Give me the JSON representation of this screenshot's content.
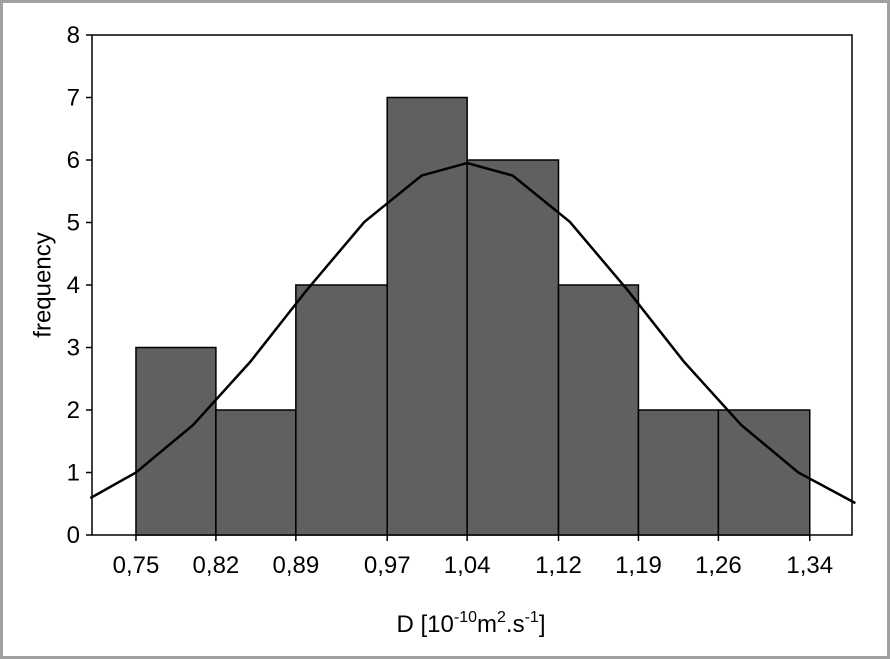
{
  "chart_data": {
    "type": "histogram",
    "xlabel": [
      "D [10",
      "-10",
      "m",
      "2",
      ".s",
      "-1",
      "]"
    ],
    "ylabel": "frequency",
    "bins": [
      0.75,
      0.82,
      0.89,
      0.97,
      1.04,
      1.12,
      1.19,
      1.26,
      1.34
    ],
    "values": [
      3,
      2,
      4,
      7,
      6,
      4,
      2,
      2
    ],
    "color": "#606060",
    "curve": {
      "color": "#000000",
      "x": [
        0.71,
        0.75,
        0.8,
        0.85,
        0.9,
        0.95,
        1.0,
        1.04,
        1.08,
        1.13,
        1.18,
        1.23,
        1.28,
        1.33,
        1.38
      ],
      "values": [
        0.59,
        1.0,
        1.76,
        2.77,
        3.93,
        5.01,
        5.75,
        5.95,
        5.75,
        5.01,
        3.93,
        2.77,
        1.76,
        1.0,
        0.51
      ]
    },
    "xlim": [
      0.7115,
      1.377
    ],
    "xticks": [
      {
        "value": 0.75,
        "label": "0,75"
      },
      {
        "value": 0.82,
        "label": "0,82"
      },
      {
        "value": 0.89,
        "label": "0,89"
      },
      {
        "value": 0.97,
        "label": "0,97"
      },
      {
        "value": 1.04,
        "label": "1,04"
      },
      {
        "value": 1.12,
        "label": "1,12"
      },
      {
        "value": 1.19,
        "label": "1,19"
      },
      {
        "value": 1.26,
        "label": "1,26"
      },
      {
        "value": 1.34,
        "label": "1,34"
      }
    ],
    "ylim": [
      0,
      8
    ],
    "yticks": [
      0,
      1,
      2,
      3,
      4,
      5,
      6,
      7,
      8
    ]
  }
}
